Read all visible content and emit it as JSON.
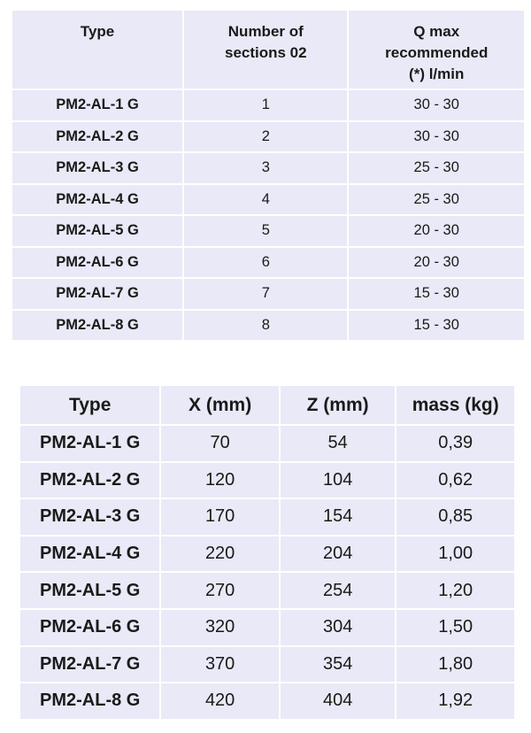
{
  "table1": {
    "headers": {
      "type": "Type",
      "sections_line1": "Number of",
      "sections_line2": "sections 02",
      "q_line1": "Q max",
      "q_line2": "recommended",
      "q_line3": "(*) l/min"
    },
    "rows": [
      {
        "type": "PM2-AL-1 G",
        "sections": "1",
        "qmax": "30 - 30"
      },
      {
        "type": "PM2-AL-2 G",
        "sections": "2",
        "qmax": "30 - 30"
      },
      {
        "type": "PM2-AL-3 G",
        "sections": "3",
        "qmax": "25 - 30"
      },
      {
        "type": "PM2-AL-4 G",
        "sections": "4",
        "qmax": "25 - 30"
      },
      {
        "type": "PM2-AL-5 G",
        "sections": "5",
        "qmax": "20 - 30"
      },
      {
        "type": "PM2-AL-6 G",
        "sections": "6",
        "qmax": "20 - 30"
      },
      {
        "type": "PM2-AL-7 G",
        "sections": "7",
        "qmax": "15 - 30"
      },
      {
        "type": "PM2-AL-8 G",
        "sections": "8",
        "qmax": "15 - 30"
      }
    ]
  },
  "table2": {
    "headers": {
      "type": "Type",
      "x": "X (mm)",
      "z": "Z (mm)",
      "mass": "mass (kg)"
    },
    "rows": [
      {
        "type": "PM2-AL-1 G",
        "x": "70",
        "z": "54",
        "mass": "0,39"
      },
      {
        "type": "PM2-AL-2 G",
        "x": "120",
        "z": "104",
        "mass": "0,62"
      },
      {
        "type": "PM2-AL-3 G",
        "x": "170",
        "z": "154",
        "mass": "0,85"
      },
      {
        "type": "PM2-AL-4 G",
        "x": "220",
        "z": "204",
        "mass": "1,00"
      },
      {
        "type": "PM2-AL-5 G",
        "x": "270",
        "z": "254",
        "mass": "1,20"
      },
      {
        "type": "PM2-AL-6 G",
        "x": "320",
        "z": "304",
        "mass": "1,50"
      },
      {
        "type": "PM2-AL-7 G",
        "x": "370",
        "z": "354",
        "mass": "1,80"
      },
      {
        "type": "PM2-AL-8 G",
        "x": "420",
        "z": "404",
        "mass": "1,92"
      }
    ]
  }
}
